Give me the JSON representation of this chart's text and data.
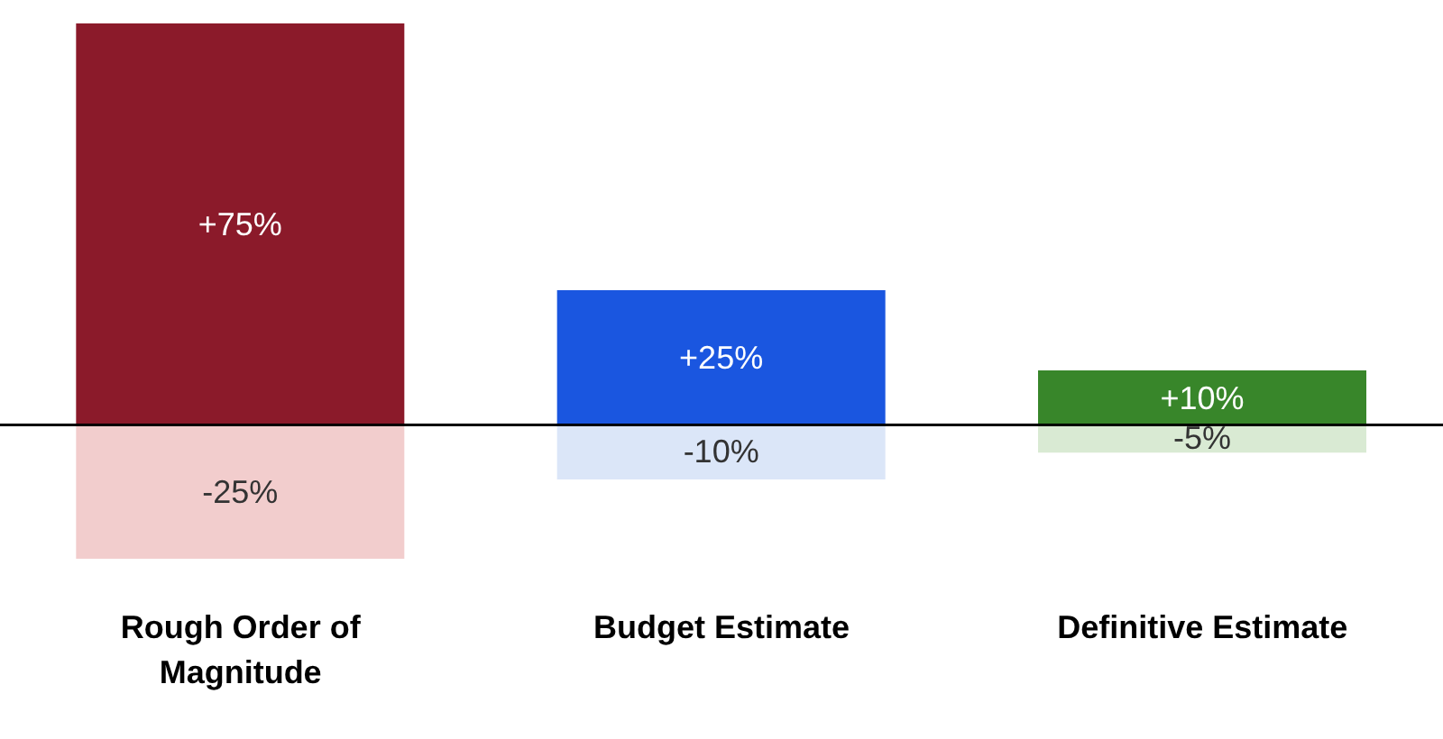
{
  "chart_data": {
    "type": "bar",
    "stacked": true,
    "categories": [
      "Rough Order of Magnitude",
      "Budget Estimate",
      "Definitive Estimate"
    ],
    "series": [
      {
        "colors": [
          "#8b1a2a",
          "#1a56e0",
          "#38862a"
        ],
        "values": [
          75,
          25,
          10
        ],
        "value_labels": [
          "+75%",
          "+25%",
          "+10%"
        ]
      },
      {
        "colors": [
          "#f2cdcd",
          "#dbe6f8",
          "#d9ead3"
        ],
        "values": [
          -25,
          -10,
          -5
        ],
        "value_labels": [
          "-25%",
          "-10%",
          "-5%"
        ]
      }
    ],
    "ylim": [
      -25,
      75
    ],
    "tick_labels": "x",
    "grid": false
  }
}
